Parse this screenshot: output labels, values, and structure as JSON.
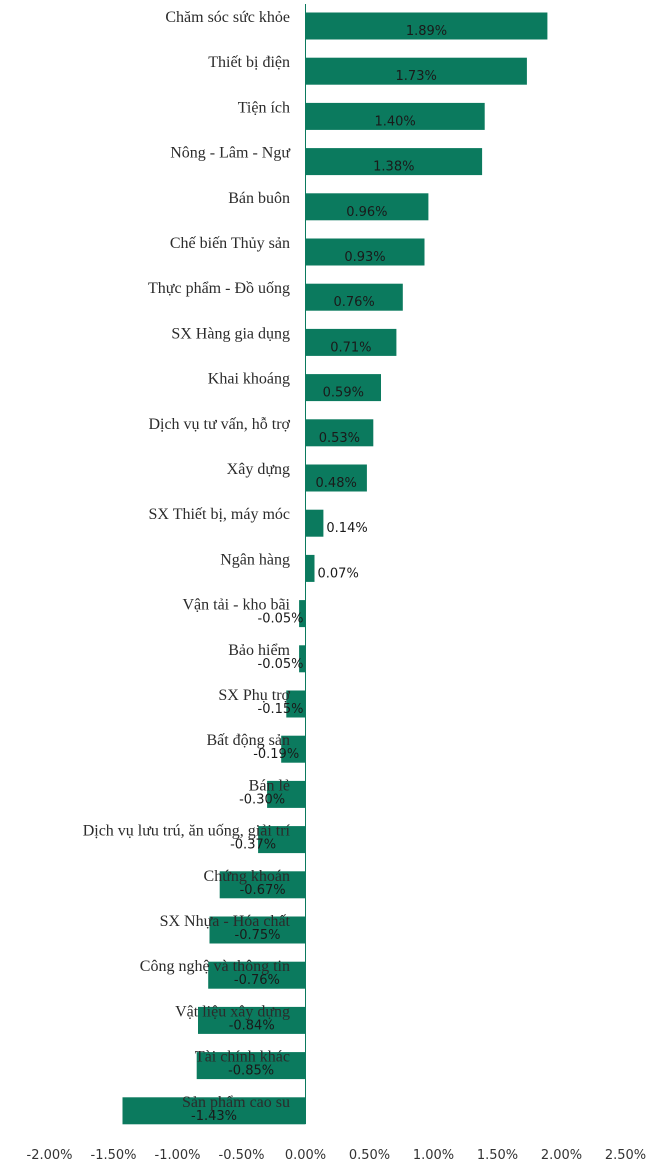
{
  "chart_data": {
    "type": "bar",
    "orientation": "horizontal",
    "title": "",
    "xlabel": "",
    "ylabel": "",
    "xlim": [
      -0.02,
      0.025
    ],
    "x_ticks": [
      "-2.00%",
      "-1.50%",
      "-1.00%",
      "-0.50%",
      "0.00%",
      "0.50%",
      "1.00%",
      "1.50%",
      "2.00%",
      "2.50%"
    ],
    "grid": false,
    "legend": "none",
    "bar_color": "#0b7a5e",
    "categories": [
      "Chăm sóc sức khỏe",
      "Thiết bị điện",
      "Tiện ích",
      "Nông - Lâm - Ngư",
      "Bán buôn",
      "Chế biến Thủy sản",
      "Thực phẩm - Đồ uống",
      "SX Hàng gia dụng",
      "Khai khoáng",
      "Dịch vụ tư vấn, hỗ trợ",
      "Xây dựng",
      "SX Thiết bị, máy móc",
      "Ngân hàng",
      "Vận tải - kho bãi",
      "Bảo hiểm",
      "SX Phụ trợ",
      "Bất động sản",
      "Bán lẻ",
      "Dịch vụ lưu trú, ăn uống, giải trí",
      "Chứng khoán",
      "SX Nhựa - Hóa chất",
      "Công nghệ và thông tin",
      "Vật liệu xây dựng",
      "Tài chính khác",
      "Sản phẩm cao su"
    ],
    "values": [
      0.0189,
      0.0173,
      0.014,
      0.0138,
      0.0096,
      0.0093,
      0.0076,
      0.0071,
      0.0059,
      0.0053,
      0.0048,
      0.0014,
      0.0007,
      -0.0005,
      -0.0005,
      -0.0015,
      -0.0019,
      -0.003,
      -0.0037,
      -0.0067,
      -0.0075,
      -0.0076,
      -0.0084,
      -0.0085,
      -0.0143
    ],
    "value_labels": [
      "1.89%",
      "1.73%",
      "1.40%",
      "1.38%",
      "0.96%",
      "0.93%",
      "0.76%",
      "0.71%",
      "0.59%",
      "0.53%",
      "0.48%",
      "0.14%",
      "0.07%",
      "-0.05%",
      "-0.05%",
      "-0.15%",
      "-0.19%",
      "-0.30%",
      "-0.37%",
      "-0.67%",
      "-0.75%",
      "-0.76%",
      "-0.84%",
      "-0.85%",
      "-1.43%"
    ]
  }
}
